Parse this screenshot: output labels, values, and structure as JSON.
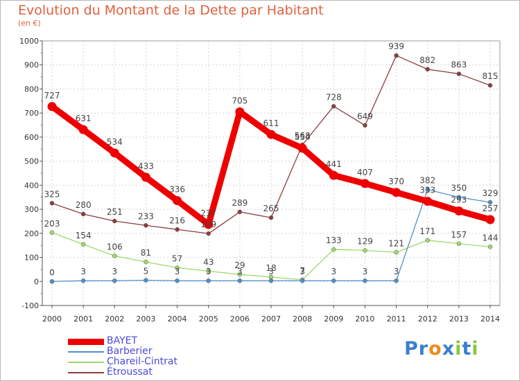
{
  "header": {
    "title": "Evolution du Montant de la Dette par Habitant",
    "subtitle": "(en €)"
  },
  "logo": {
    "text": "Proxiti",
    "letters": [
      "P",
      "r",
      "o",
      "x",
      "i",
      "t",
      "i"
    ],
    "colors": [
      "#3a7fd0",
      "#3a7fd0",
      "#f08a1c",
      "#3a7fd0",
      "#8cc63f",
      "#3a7fd0",
      "#8cc63f"
    ]
  },
  "chart_data": {
    "type": "line",
    "title": "Evolution du Montant de la Dette par Habitant",
    "subtitle": "(en €)",
    "xlabel": "",
    "ylabel": "",
    "x": [
      "2000",
      "2001",
      "2002",
      "2003",
      "2004",
      "2005",
      "2006",
      "2007",
      "2008",
      "2009",
      "2010",
      "2011",
      "2012",
      "2013",
      "2014"
    ],
    "ylim": [
      -100,
      1000
    ],
    "yticks": [
      "-100",
      "0",
      "100",
      "200",
      "300",
      "400",
      "500",
      "600",
      "700",
      "800",
      "900",
      "1000"
    ],
    "grid": true,
    "legend_position": "bottom-left",
    "series": [
      {
        "name": "BAYET",
        "color": "#ee0000",
        "values": [
          727,
          631,
          534,
          433,
          336,
          237,
          705,
          611,
          554,
          441,
          407,
          370,
          333,
          293,
          257
        ],
        "labels": [
          "727",
          "631",
          "534",
          "433",
          "336",
          "237",
          "705",
          "611",
          "554",
          "441",
          "407",
          "370",
          "333",
          "293",
          "257"
        ]
      },
      {
        "name": "Barberier",
        "color": "#4f8fc7",
        "values": [
          0,
          3,
          3,
          5,
          3,
          3,
          3,
          3,
          3,
          3,
          3,
          3,
          382,
          350,
          329
        ],
        "labels": [
          "0",
          "3",
          "3",
          "5",
          "3",
          "3",
          "3",
          "3",
          "3",
          "3",
          "3",
          "3",
          "382",
          "350",
          "329"
        ]
      },
      {
        "name": "Chareil-Cintrat",
        "color": "#9ed86a",
        "values": [
          203,
          154,
          106,
          81,
          57,
          43,
          29,
          18,
          7,
          133,
          129,
          121,
          171,
          157,
          144
        ],
        "labels": [
          "203",
          "154",
          "106",
          "81",
          "57",
          "43",
          "29",
          "18",
          "7",
          "133",
          "129",
          "121",
          "171",
          "157",
          "144"
        ]
      },
      {
        "name": "Étroussat",
        "color": "#8b3e3e",
        "values": [
          325,
          280,
          251,
          233,
          216,
          199,
          289,
          265,
          568,
          728,
          649,
          939,
          882,
          863,
          815
        ],
        "labels": [
          "325",
          "280",
          "251",
          "233",
          "216",
          "199",
          "289",
          "265",
          "568",
          "728",
          "649",
          "939",
          "882",
          "863",
          "815"
        ]
      }
    ]
  }
}
